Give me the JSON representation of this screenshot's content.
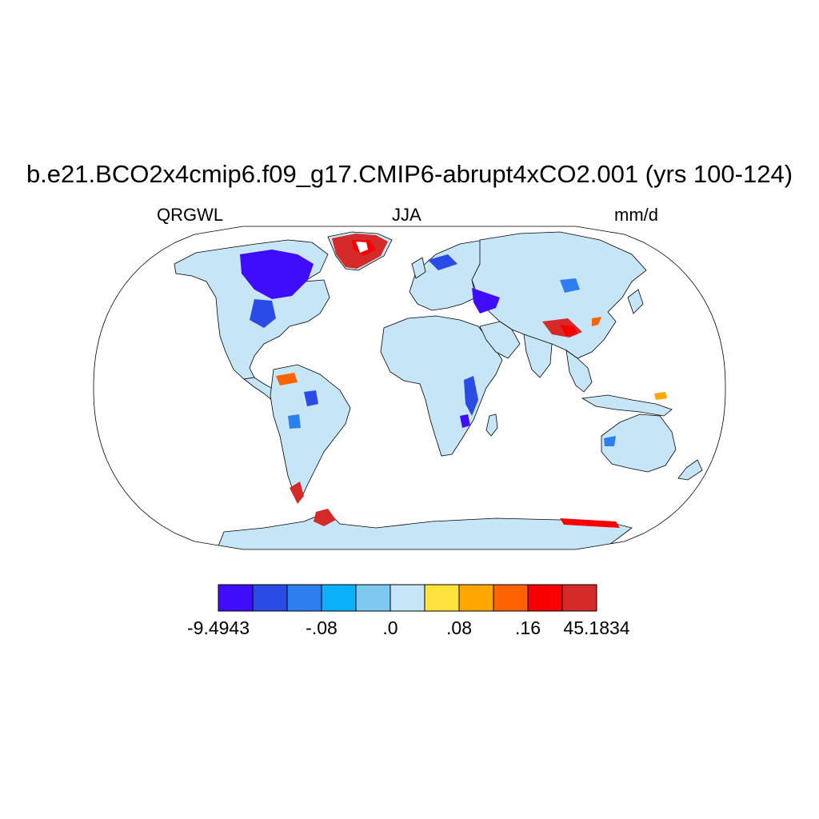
{
  "title": "b.e21.BCO2x4cmip6.f09_g17.CMIP6-abrupt4xCO2.001 (yrs 100-124)",
  "subtitle_left": "QRGWL",
  "subtitle_center": "JJA",
  "subtitle_right": "mm/d",
  "projection": "robinson",
  "colorbar": {
    "colors": [
      "#3f0cfc",
      "#2a4be6",
      "#2d7ff0",
      "#0bb1fb",
      "#7dc9f0",
      "#c6e6f8",
      "#ffe23e",
      "#ffa700",
      "#ff6200",
      "#f80000",
      "#d42a2a"
    ],
    "labels": [
      "-9.4943",
      "-.08",
      ".0",
      ".08",
      ".16",
      "45.1834"
    ]
  },
  "map_fill": {
    "land_base": "#c6e6f8",
    "ocean": "#ffffff",
    "coastline": "#000000"
  }
}
